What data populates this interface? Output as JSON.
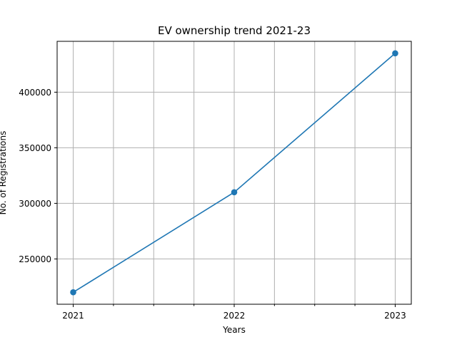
{
  "chart_data": {
    "type": "line",
    "title": "EV ownership trend 2021-23",
    "xlabel": "Years",
    "ylabel": "No. of Registrations",
    "x": [
      2021,
      2022,
      2023
    ],
    "x_tick_labels": [
      "2021",
      "2022",
      "2023"
    ],
    "x_minor_ticks": [
      2021.25,
      2021.5,
      2021.75,
      2022.25,
      2022.5,
      2022.75
    ],
    "y_tick_labels": [
      "250000",
      "300000",
      "350000",
      "400000"
    ],
    "y_ticks": [
      250000,
      300000,
      350000,
      400000
    ],
    "series": [
      {
        "values": [
          220000,
          310000,
          435000
        ],
        "color": "#1f77b4",
        "marker": "circle"
      }
    ],
    "xlim": [
      2020.9,
      2023.1
    ],
    "ylim": [
      209250,
      445750
    ],
    "grid": true
  }
}
